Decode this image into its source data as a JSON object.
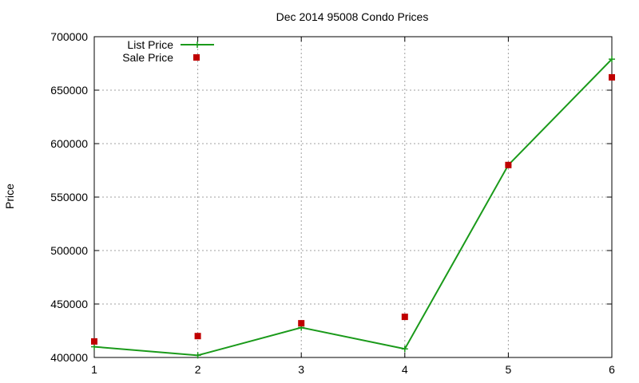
{
  "chart_data": {
    "type": "line",
    "title": "Dec 2014 95008 Condo Prices",
    "xlabel": "",
    "ylabel": "Price",
    "x": [
      1,
      2,
      3,
      4,
      5,
      6
    ],
    "xlim": [
      1,
      6
    ],
    "ylim": [
      400000,
      700000
    ],
    "xticks": [
      "1",
      "2",
      "3",
      "4",
      "5",
      "6"
    ],
    "yticks": [
      "400000",
      "450000",
      "500000",
      "550000",
      "600000",
      "650000",
      "700000"
    ],
    "grid": true,
    "legend_position": "top-left",
    "series": [
      {
        "name": "List Price",
        "style": "line-with-plus-markers",
        "color": "#1a9a1a",
        "values": [
          410000,
          402000,
          428000,
          408000,
          580000,
          679000
        ]
      },
      {
        "name": "Sale Price",
        "style": "square-markers",
        "color": "#c00000",
        "values": [
          415000,
          420000,
          432000,
          438000,
          580000,
          662000
        ]
      }
    ]
  }
}
